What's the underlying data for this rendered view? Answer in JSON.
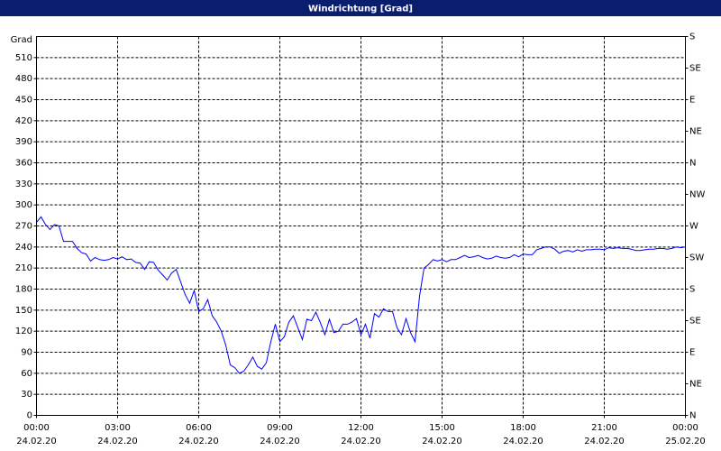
{
  "chart_data": {
    "type": "line",
    "title": "Windrichtung [Grad]",
    "y_label": "Grad",
    "x": [
      0,
      10,
      20,
      30,
      40,
      50,
      60,
      70,
      80,
      90,
      100,
      110,
      120,
      130,
      140,
      150,
      160,
      170,
      180,
      190,
      200,
      210,
      220,
      230,
      240,
      250,
      260,
      270,
      280,
      290,
      300,
      310,
      320,
      330,
      340,
      350,
      360,
      370,
      380,
      390,
      400,
      410,
      420,
      430,
      440,
      450,
      460,
      470,
      480,
      490,
      500,
      510,
      520,
      530,
      540,
      550,
      560,
      570,
      580,
      590,
      600,
      610,
      620,
      630,
      640,
      650,
      660,
      670,
      680,
      690,
      700,
      710,
      720,
      730,
      740,
      750,
      760,
      770,
      780,
      790,
      800,
      810,
      820,
      830,
      840,
      850,
      860,
      870,
      880,
      890,
      900,
      910,
      920,
      930,
      940,
      950,
      960,
      970,
      980,
      990,
      1000,
      1010,
      1020,
      1030,
      1040,
      1050,
      1060,
      1070,
      1080,
      1090,
      1100,
      1110,
      1120,
      1130,
      1140,
      1150,
      1160,
      1170,
      1180,
      1190,
      1200,
      1210,
      1220,
      1230,
      1240,
      1250,
      1260,
      1270,
      1280,
      1290,
      1300,
      1310,
      1320,
      1330,
      1340,
      1350,
      1360,
      1370,
      1380,
      1390,
      1400,
      1410,
      1420,
      1430,
      1440
    ],
    "values": [
      275,
      283,
      272,
      265,
      272,
      270,
      248,
      248,
      248,
      238,
      232,
      230,
      220,
      225,
      222,
      221,
      222,
      225,
      223,
      226,
      222,
      223,
      218,
      217,
      208,
      219,
      218,
      207,
      200,
      193,
      203,
      208,
      190,
      172,
      160,
      178,
      148,
      152,
      165,
      142,
      133,
      120,
      100,
      72,
      68,
      60,
      63,
      72,
      83,
      70,
      66,
      75,
      105,
      130,
      105,
      112,
      133,
      142,
      125,
      108,
      137,
      135,
      147,
      132,
      115,
      137,
      118,
      120,
      130,
      130,
      133,
      138,
      115,
      130,
      110,
      145,
      140,
      152,
      148,
      148,
      125,
      115,
      138,
      118,
      105,
      170,
      210,
      215,
      222,
      220,
      222,
      219,
      222,
      222,
      225,
      228,
      225,
      226,
      228,
      225,
      223,
      224,
      227,
      225,
      224,
      225,
      229,
      226,
      230,
      229,
      229,
      236,
      238,
      240,
      240,
      237,
      231,
      234,
      235,
      233,
      236,
      234,
      236,
      236,
      237,
      237,
      236,
      239,
      238,
      239,
      238,
      238,
      237,
      235,
      235,
      236,
      237,
      237,
      238,
      238,
      237,
      238,
      240,
      239,
      240
    ],
    "color": "#0000ff",
    "xlim": [
      0,
      1440
    ],
    "xticks": [
      {
        "value": 0,
        "label": "00:00"
      },
      {
        "value": 180,
        "label": "03:00"
      },
      {
        "value": 360,
        "label": "06:00"
      },
      {
        "value": 540,
        "label": "09:00"
      },
      {
        "value": 720,
        "label": "12:00"
      },
      {
        "value": 900,
        "label": "15:00"
      },
      {
        "value": 1080,
        "label": "18:00"
      },
      {
        "value": 1260,
        "label": "21:00"
      },
      {
        "value": 1440,
        "label": "00:00"
      }
    ],
    "xtick_dates": [
      "24.02.20",
      "24.02.20",
      "24.02.20",
      "24.02.20",
      "24.02.20",
      "24.02.20",
      "24.02.20",
      "24.02.20",
      "25.02.20"
    ],
    "ylim": [
      0,
      540
    ],
    "yticks": [
      0,
      30,
      60,
      90,
      120,
      150,
      180,
      210,
      240,
      270,
      300,
      330,
      360,
      390,
      420,
      450,
      480,
      510
    ],
    "y2lim": [
      0,
      540
    ],
    "y2ticks": [
      {
        "value": 0,
        "label": "N"
      },
      {
        "value": 45,
        "label": "NE"
      },
      {
        "value": 90,
        "label": "E"
      },
      {
        "value": 135,
        "label": "SE"
      },
      {
        "value": 180,
        "label": "S"
      },
      {
        "value": 225,
        "label": "SW"
      },
      {
        "value": 270,
        "label": "W"
      },
      {
        "value": 315,
        "label": "NW"
      },
      {
        "value": 360,
        "label": "N"
      },
      {
        "value": 405,
        "label": "NE"
      },
      {
        "value": 450,
        "label": "E"
      },
      {
        "value": 495,
        "label": "SE"
      },
      {
        "value": 540,
        "label": "S"
      }
    ],
    "grid": true
  }
}
